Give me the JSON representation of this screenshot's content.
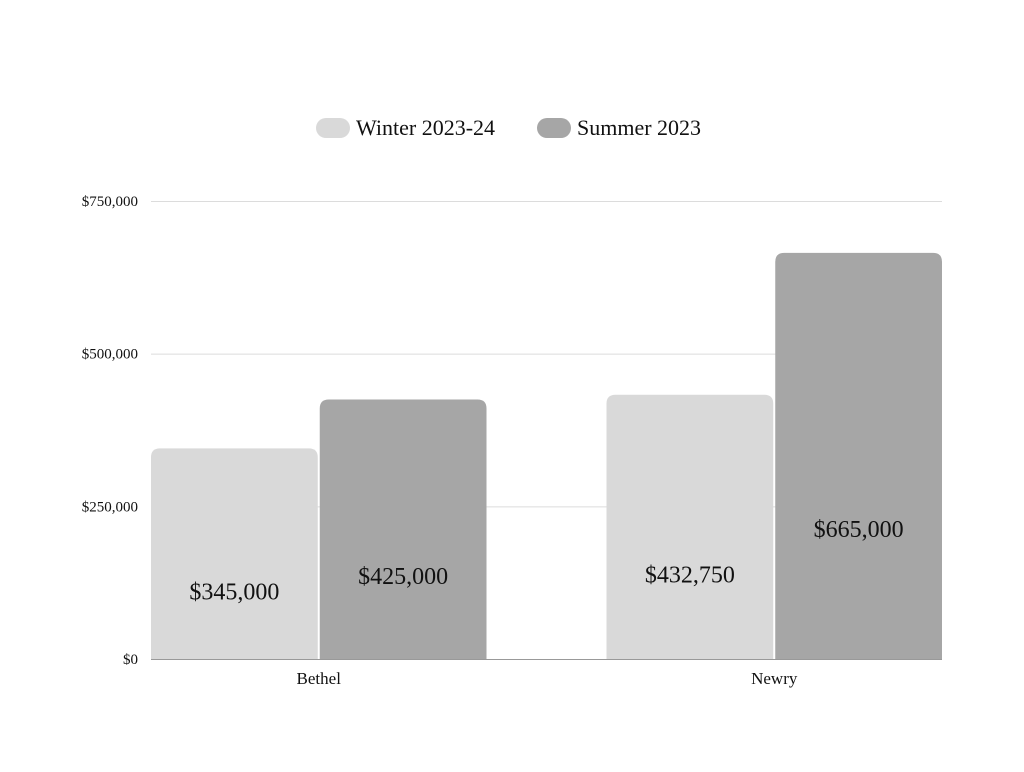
{
  "chart_data": {
    "type": "bar",
    "categories": [
      "Bethel",
      "Newry"
    ],
    "series": [
      {
        "name": "Winter 2023-24",
        "color": "#d9d9d9",
        "values": [
          345000,
          432750
        ]
      },
      {
        "name": "Summer 2023",
        "color": "#a6a6a6",
        "values": [
          425000,
          665000
        ]
      }
    ],
    "data_labels": [
      [
        "$345,000",
        "$432,750"
      ],
      [
        "$425,000",
        "$665,000"
      ]
    ],
    "y_ticks": [
      0,
      250000,
      500000,
      750000
    ],
    "y_tick_labels": [
      "$0",
      "$250,000",
      "$500,000",
      "$750,000"
    ],
    "ylim": [
      0,
      750000
    ],
    "grid": true,
    "legend": "top-center",
    "title": "",
    "xlabel": "",
    "ylabel": ""
  }
}
